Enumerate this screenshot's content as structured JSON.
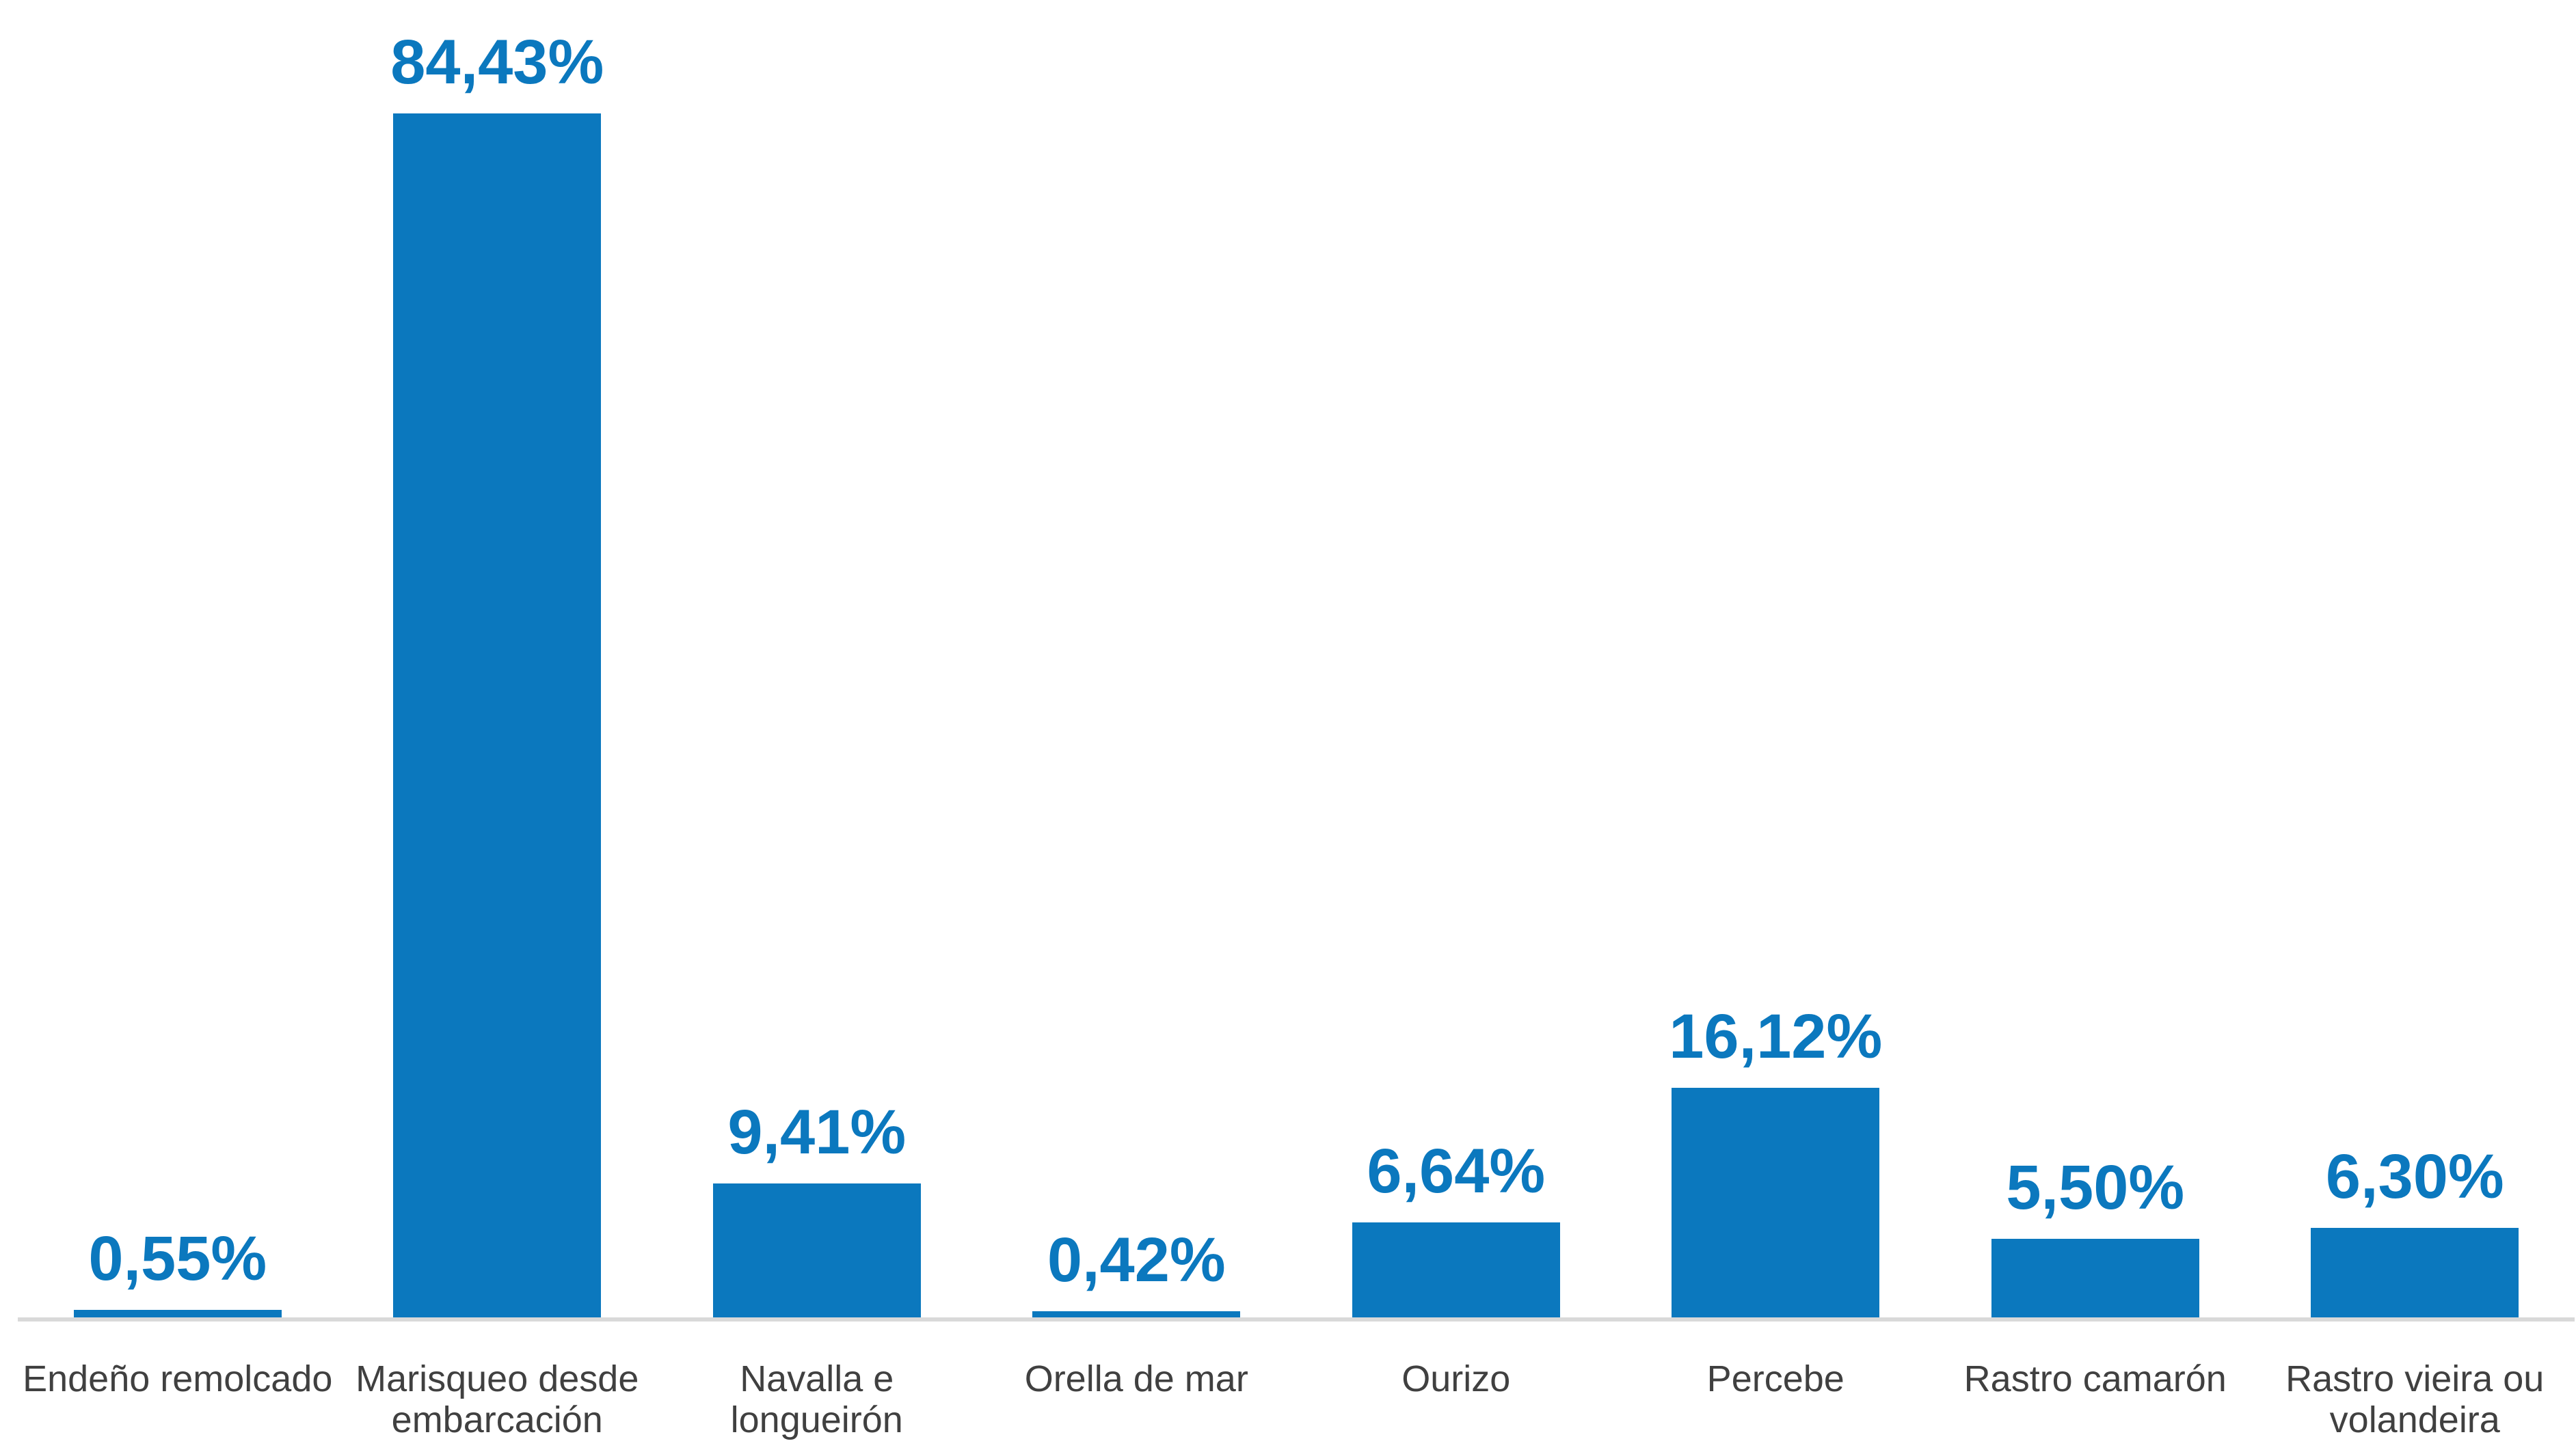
{
  "chart": {
    "bar_color": "#0B78BE",
    "value_label_color": "#0B78BE",
    "category_label_color": "#404040",
    "baseline_color": "#D9D9D9",
    "background_color": "#FFFFFF"
  },
  "chart_data": {
    "type": "bar",
    "title": "",
    "xlabel": "",
    "ylabel": "",
    "categories": [
      "Endeño remolcado",
      "Marisqueo desde embarcación",
      "Navalla e longueirón",
      "Orella de mar",
      "Ourizo",
      "Percebe",
      "Rastro camarón",
      "Rastro vieira ou volandeira"
    ],
    "values": [
      0.55,
      84.43,
      9.41,
      0.42,
      6.64,
      16.12,
      5.5,
      6.3
    ],
    "value_labels": [
      "0,55%",
      "84,43%",
      "9,41%",
      "0,42%",
      "6,64%",
      "16,12%",
      "5,50%",
      "6,30%"
    ],
    "ylim": [
      0,
      92.4
    ],
    "grid": false,
    "legend": false,
    "y_axis_visible": false,
    "data_labels_position": "above-bars"
  }
}
